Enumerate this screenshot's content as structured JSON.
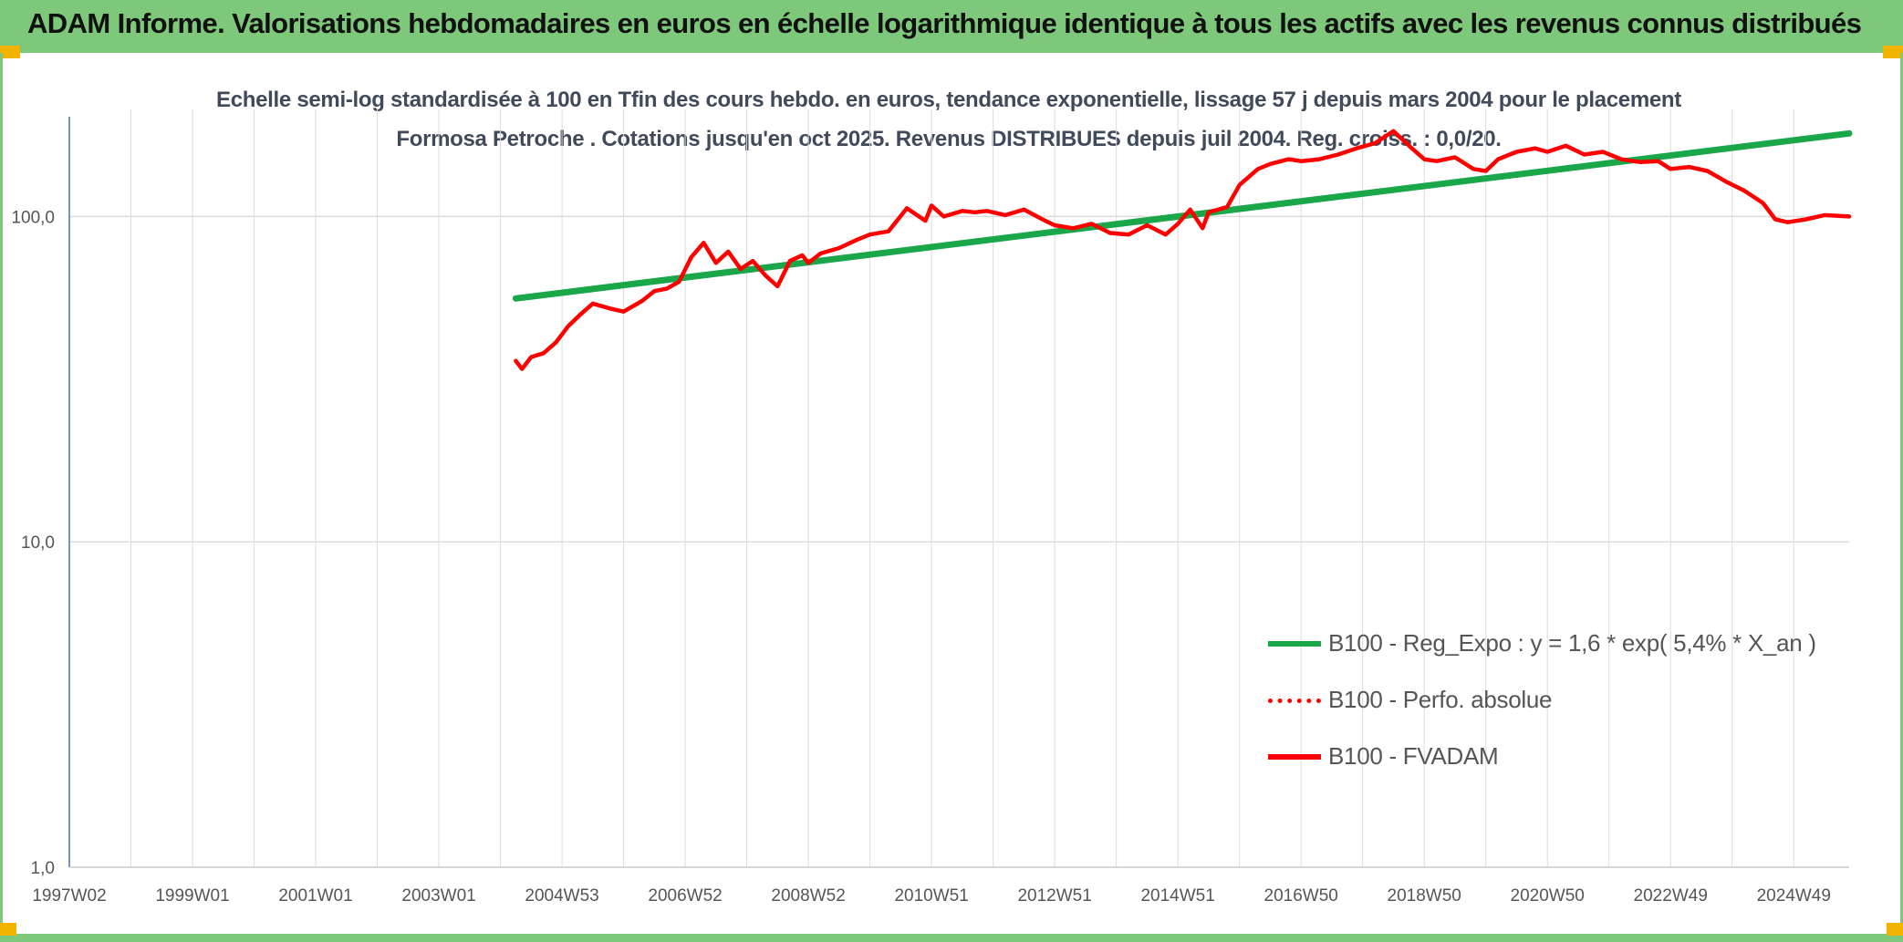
{
  "header": {
    "title": "ADAM Informe. Valorisations hebdomadaires en euros en échelle logarithmique identique à tous les actifs avec les revenus connus distribués"
  },
  "chart_data": {
    "type": "line",
    "title": "Echelle semi-log standardisée à 100 en Tfin des cours hebdo. en euros, tendance exponentielle, lissage 57 j depuis mars 2004 pour le placement Formosa Petroche . Cotations jusqu'en oct 2025. Revenus DISTRIBUES depuis juil 2004. Reg. croiss. : 0,0/20.",
    "y_scale": "log",
    "ylim": [
      1,
      200
    ],
    "xlim": [
      1997.0,
      2025.9
    ],
    "grid": true,
    "y_ticks": [
      {
        "value": 1,
        "label": "1,0"
      },
      {
        "value": 10,
        "label": "10,0"
      },
      {
        "value": 100,
        "label": "100,0"
      }
    ],
    "x_ticks": [
      {
        "value": 1997.0,
        "label": "1997W02"
      },
      {
        "value": 1999.0,
        "label": "1999W01"
      },
      {
        "value": 2001.0,
        "label": "2001W01"
      },
      {
        "value": 2003.0,
        "label": "2003W01"
      },
      {
        "value": 2005.0,
        "label": "2004W53"
      },
      {
        "value": 2007.0,
        "label": "2006W52"
      },
      {
        "value": 2009.0,
        "label": "2008W52"
      },
      {
        "value": 2011.0,
        "label": "2010W51"
      },
      {
        "value": 2013.0,
        "label": "2012W51"
      },
      {
        "value": 2015.0,
        "label": "2014W51"
      },
      {
        "value": 2017.0,
        "label": "2016W50"
      },
      {
        "value": 2019.0,
        "label": "2018W50"
      },
      {
        "value": 2021.0,
        "label": "2020W50"
      },
      {
        "value": 2023.0,
        "label": "2022W49"
      },
      {
        "value": 2025.0,
        "label": "2024W49"
      }
    ],
    "legend_position": "bottom-right",
    "series": [
      {
        "name": "B100 - Reg_Expo : y = 1,6 * exp( 5,4% *  X_an )",
        "color": "#1aa74a",
        "style": "solid",
        "x": [
          2004.25,
          2025.9
        ],
        "y": [
          56,
          180
        ]
      },
      {
        "name": "B100 - Perfo. absolue",
        "color": "#ff0000",
        "style": "dotted",
        "x": [],
        "y": []
      },
      {
        "name": "B100 - FVADAM",
        "color": "#ff0000",
        "style": "solid",
        "x": [
          2004.25,
          2004.35,
          2004.5,
          2004.7,
          2004.9,
          2005.1,
          2005.3,
          2005.5,
          2005.8,
          2006.0,
          2006.3,
          2006.5,
          2006.7,
          2006.9,
          2007.1,
          2007.3,
          2007.5,
          2007.7,
          2007.9,
          2008.1,
          2008.3,
          2008.5,
          2008.7,
          2008.9,
          2009.0,
          2009.2,
          2009.5,
          2009.8,
          2010.0,
          2010.3,
          2010.6,
          2010.9,
          2011.0,
          2011.2,
          2011.5,
          2011.7,
          2011.9,
          2012.2,
          2012.5,
          2012.8,
          2013.0,
          2013.3,
          2013.6,
          2013.9,
          2014.2,
          2014.5,
          2014.8,
          2015.0,
          2015.2,
          2015.4,
          2015.5,
          2015.8,
          2016.0,
          2016.3,
          2016.5,
          2016.8,
          2017.0,
          2017.3,
          2017.6,
          2017.9,
          2018.2,
          2018.5,
          2018.8,
          2019.0,
          2019.2,
          2019.5,
          2019.8,
          2020.0,
          2020.2,
          2020.5,
          2020.8,
          2021.0,
          2021.3,
          2021.6,
          2021.9,
          2022.2,
          2022.5,
          2022.8,
          2023.0,
          2023.3,
          2023.6,
          2023.9,
          2024.2,
          2024.5,
          2024.7,
          2024.9,
          2025.2,
          2025.5,
          2025.9
        ],
        "y": [
          36,
          34,
          37,
          38,
          41,
          46,
          50,
          54,
          52,
          51,
          55,
          59,
          60,
          63,
          75,
          83,
          72,
          78,
          69,
          73,
          66,
          61,
          73,
          76,
          72,
          77,
          80,
          85,
          88,
          90,
          106,
          97,
          108,
          100,
          104,
          103,
          104,
          101,
          105,
          98,
          94,
          92,
          95,
          89,
          88,
          94,
          88,
          95,
          105,
          92,
          103,
          107,
          125,
          140,
          145,
          150,
          148,
          150,
          155,
          162,
          168,
          183,
          162,
          150,
          148,
          152,
          140,
          138,
          150,
          158,
          162,
          158,
          165,
          155,
          158,
          150,
          147,
          148,
          140,
          142,
          138,
          128,
          120,
          110,
          98,
          96,
          98,
          101,
          100
        ]
      }
    ]
  }
}
